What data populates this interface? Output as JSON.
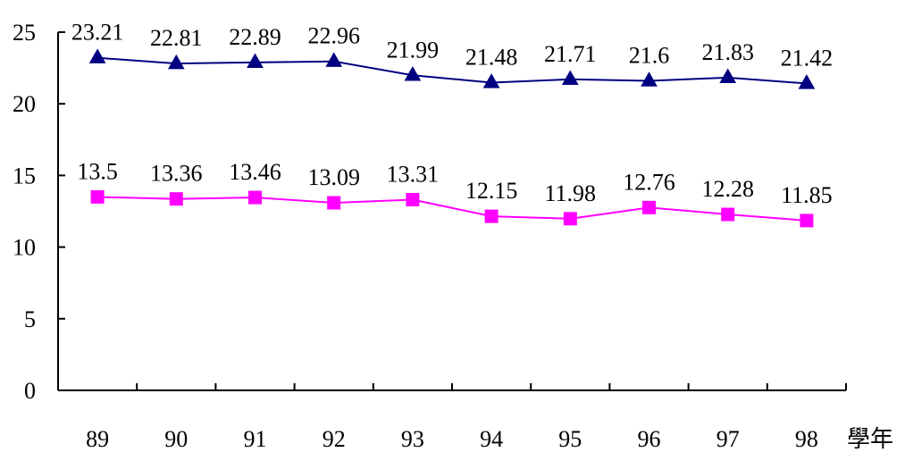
{
  "chart_data": {
    "type": "line",
    "categories": [
      "89",
      "90",
      "91",
      "92",
      "93",
      "94",
      "95",
      "96",
      "97",
      "98"
    ],
    "series": [
      {
        "values": [
          23.21,
          22.81,
          22.89,
          22.96,
          21.99,
          21.48,
          21.71,
          21.6,
          21.83,
          21.42
        ],
        "labels": [
          "23.21",
          "22.81",
          "22.89",
          "22.96",
          "21.99",
          "21.48",
          "21.71",
          "21.6",
          "21.83",
          "21.42"
        ],
        "color": "#000080",
        "marker": "triangle"
      },
      {
        "values": [
          13.5,
          13.36,
          13.46,
          13.09,
          13.31,
          12.15,
          11.98,
          12.76,
          12.28,
          11.85
        ],
        "labels": [
          "13.5",
          "13.36",
          "13.46",
          "13.09",
          "13.31",
          "12.15",
          "11.98",
          "12.76",
          "12.28",
          "11.85"
        ],
        "color": "#FF00FF",
        "marker": "square"
      }
    ],
    "ylim": [
      0,
      25
    ],
    "yticks": [
      0,
      5,
      10,
      15,
      20,
      25
    ],
    "ytick_labels": [
      "0",
      "5",
      "10",
      "15",
      "20",
      "25"
    ],
    "xunit": "學年",
    "grid": false,
    "legend": "none"
  }
}
